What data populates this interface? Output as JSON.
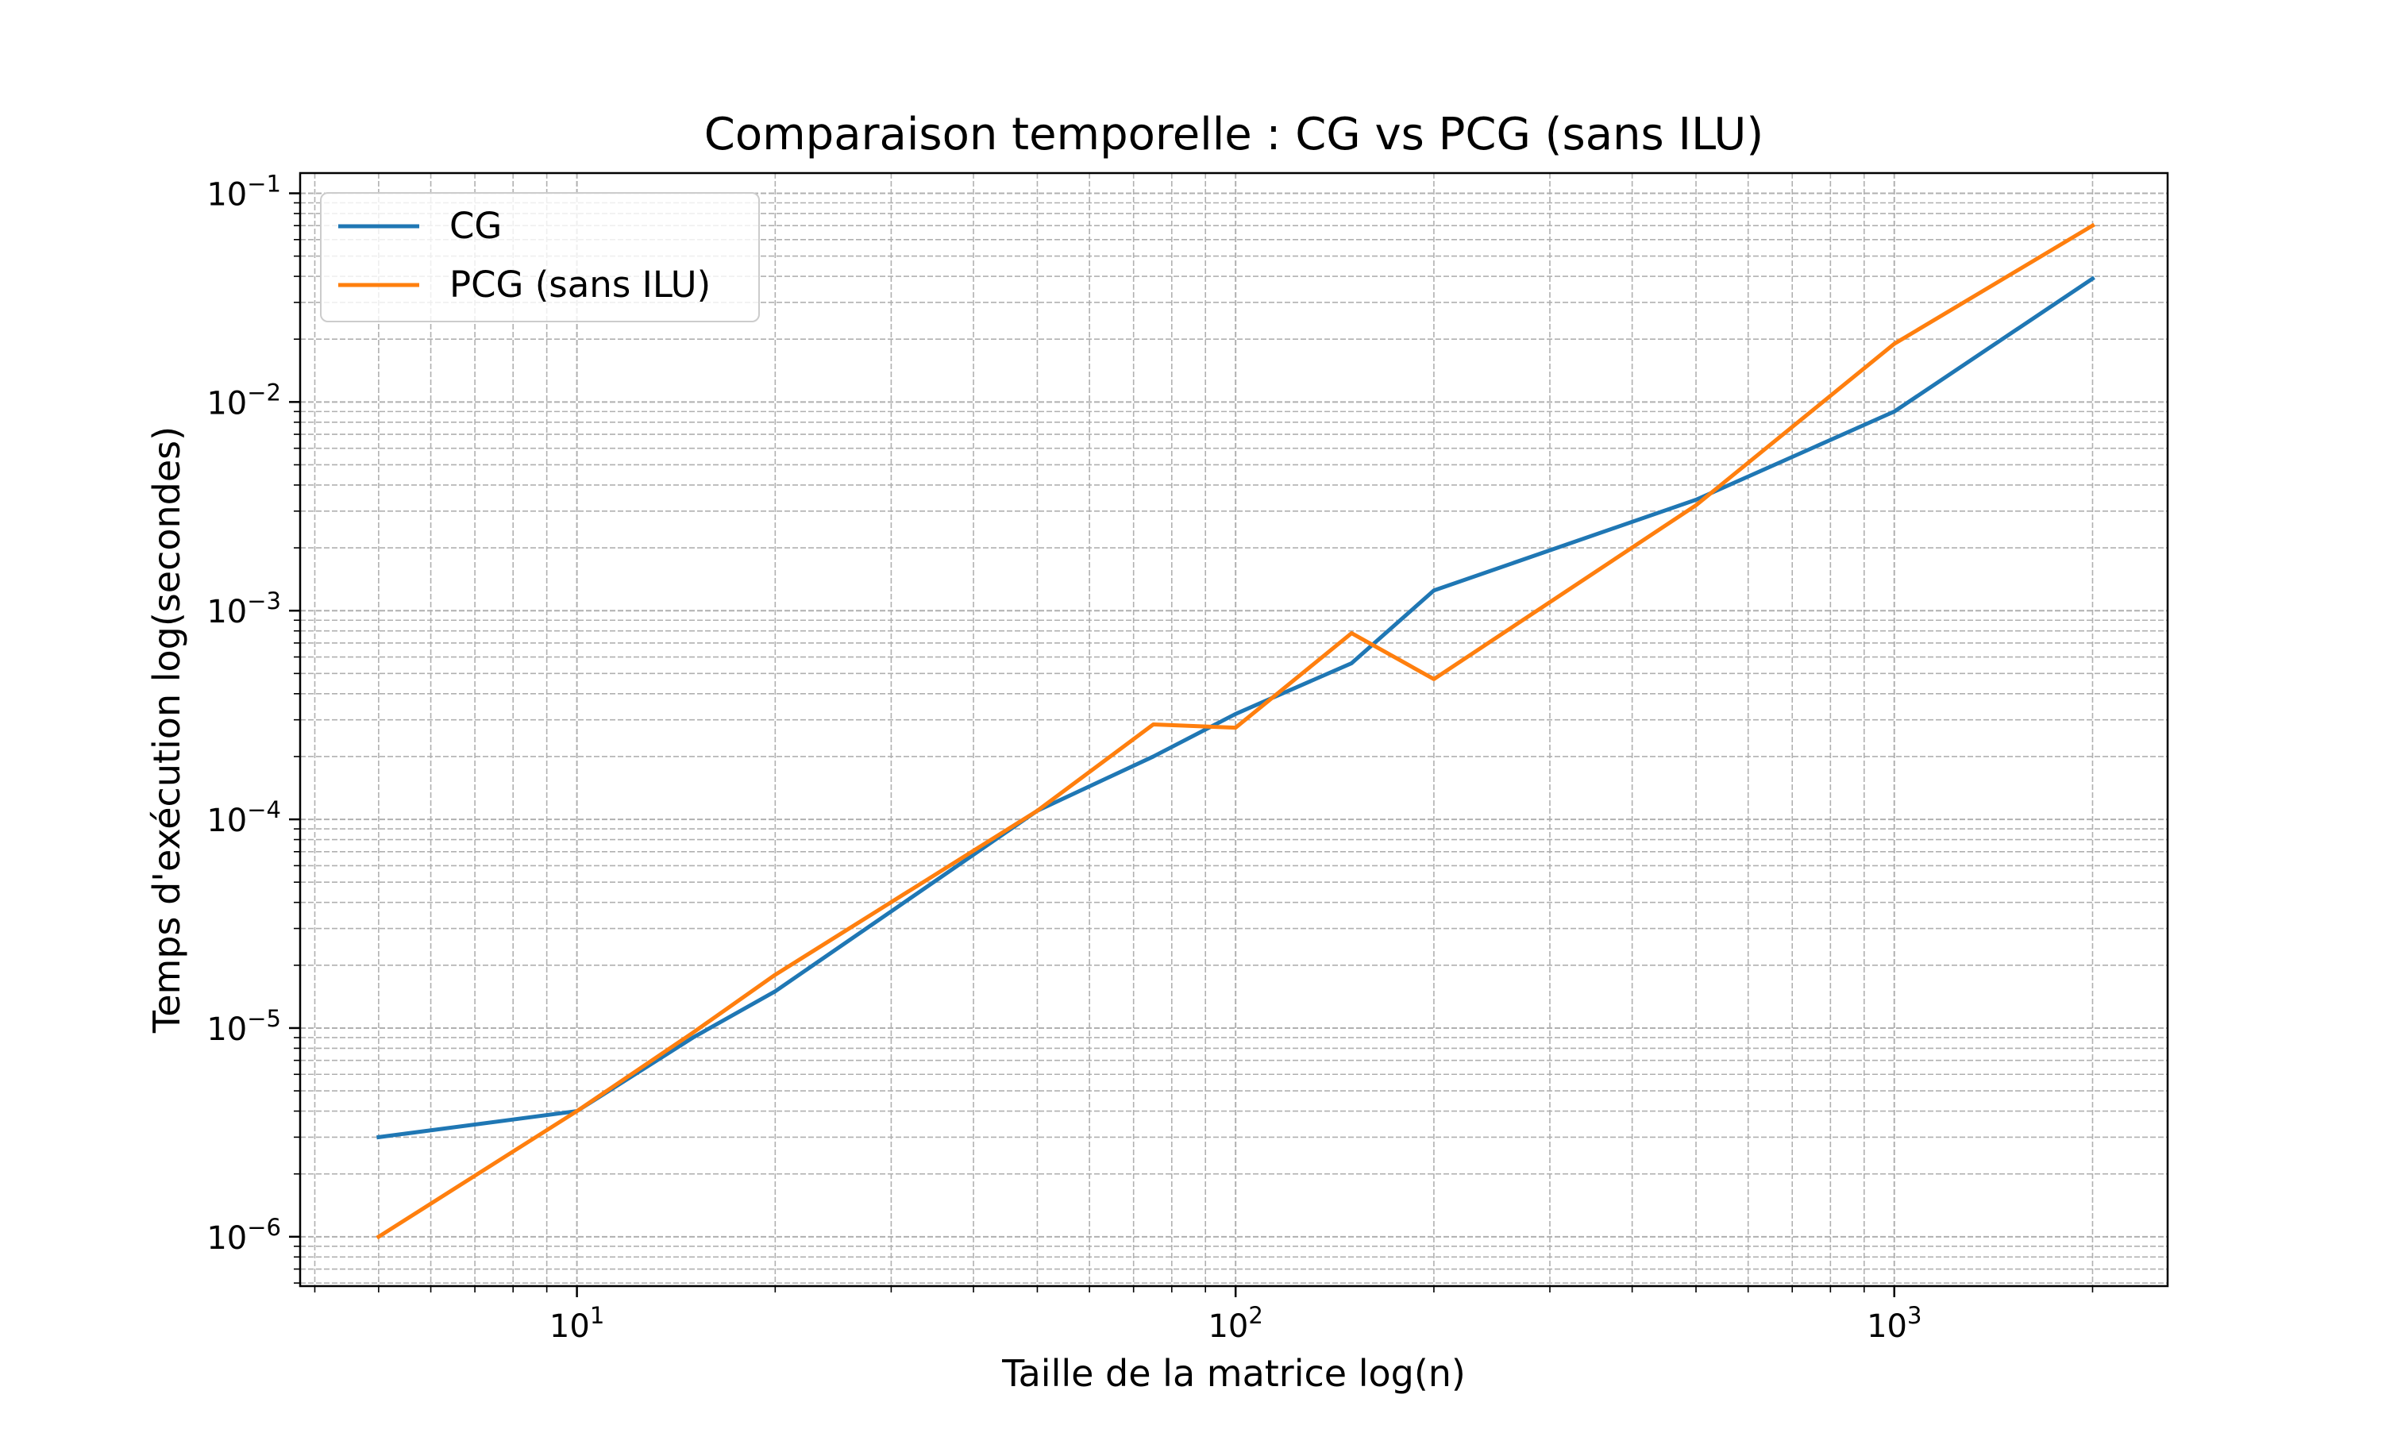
{
  "chart_data": {
    "type": "line",
    "title": "Comparaison temporelle : CG vs PCG (sans ILU)",
    "xlabel": "Taille de la matrice log(n)",
    "ylabel": "Temps d'exécution log(secondes)",
    "xscale": "log",
    "yscale": "log",
    "xlim": [
      3.8,
      2600
    ],
    "ylim": [
      5.8e-07,
      0.125
    ],
    "grid": "major and minor, dashed",
    "legend_position": "top-left",
    "xticks": [
      {
        "value": 10,
        "base": "10",
        "exp": "1"
      },
      {
        "value": 100,
        "base": "10",
        "exp": "2"
      },
      {
        "value": 1000,
        "base": "10",
        "exp": "3"
      }
    ],
    "yticks": [
      {
        "value": 1e-06,
        "base": "10",
        "exp": "−6"
      },
      {
        "value": 1e-05,
        "base": "10",
        "exp": "−5"
      },
      {
        "value": 0.0001,
        "base": "10",
        "exp": "−4"
      },
      {
        "value": 0.001,
        "base": "10",
        "exp": "−3"
      },
      {
        "value": 0.01,
        "base": "10",
        "exp": "−2"
      },
      {
        "value": 0.1,
        "base": "10",
        "exp": "−1"
      }
    ],
    "x": [
      5,
      10,
      15,
      20,
      50,
      75,
      100,
      150,
      200,
      500,
      1000,
      2000
    ],
    "series": [
      {
        "name": "CG",
        "color": "#1f77b4",
        "values": [
          3e-06,
          4e-06,
          9e-06,
          1.5e-05,
          0.00011,
          0.0002,
          0.00032,
          0.00056,
          0.00125,
          0.0034,
          0.009,
          0.039
        ]
      },
      {
        "name": "PCG (sans ILU)",
        "color": "#ff7f0e",
        "values": [
          1e-06,
          4e-06,
          9.5e-06,
          1.8e-05,
          0.00011,
          0.000285,
          0.000275,
          0.00078,
          0.00047,
          0.0032,
          0.019,
          0.07
        ]
      }
    ]
  }
}
